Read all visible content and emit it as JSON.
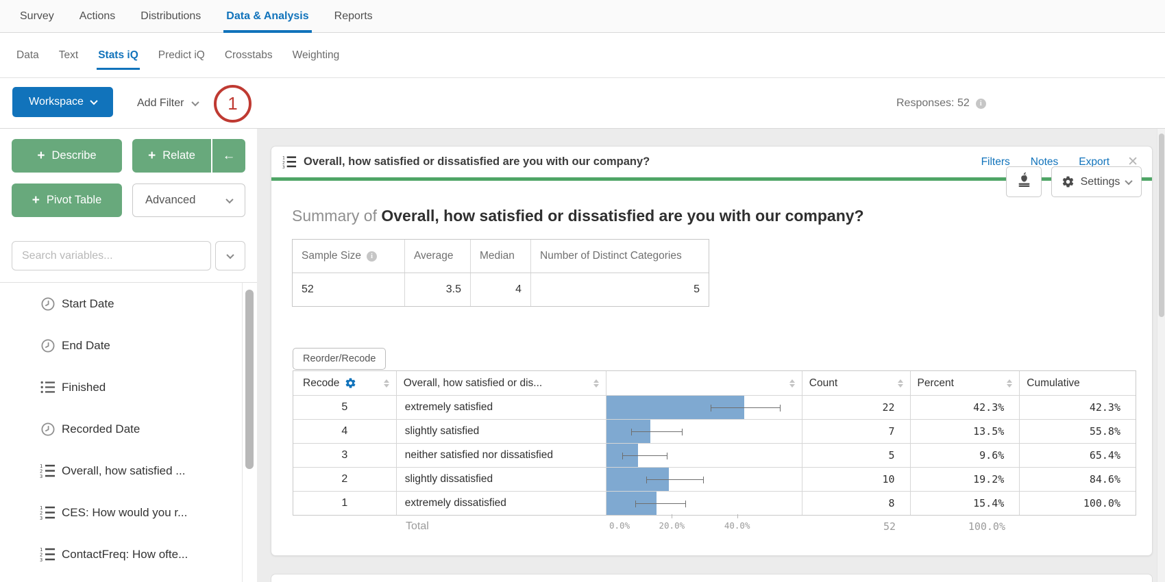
{
  "colors": {
    "accent_blue": "#1173bb",
    "button_green": "#68a97c",
    "bar_blue": "#7fa9d1",
    "annotation_red": "#bf3a32",
    "header_green": "#4fa566"
  },
  "nav": {
    "tabs": [
      "Survey",
      "Actions",
      "Distributions",
      "Data & Analysis",
      "Reports"
    ],
    "active_tab": "Data & Analysis"
  },
  "subnav": {
    "tabs": [
      "Data",
      "Text",
      "Stats iQ",
      "Predict iQ",
      "Crosstabs",
      "Weighting"
    ],
    "active_tab": "Stats iQ"
  },
  "toolbar": {
    "workspace_label": "Workspace",
    "add_filter_label": "Add Filter",
    "annotation_badge": "1",
    "responses_label": "Responses: 52",
    "info_glyph": "i",
    "settings_label": "Settings"
  },
  "sidebar": {
    "plus_glyph": "+",
    "describe_label": "Describe",
    "relate_label": "Relate",
    "collapse_arrow": "←",
    "pivot_label": "Pivot Table",
    "advanced_label": "Advanced",
    "search_placeholder": "Search variables...",
    "variables": [
      {
        "icon": "clock-icon",
        "label": "Start Date"
      },
      {
        "icon": "clock-icon",
        "label": "End Date"
      },
      {
        "icon": "list-icon",
        "label": "Finished"
      },
      {
        "icon": "clock-icon",
        "label": "Recorded Date"
      },
      {
        "icon": "ordered-list-icon",
        "label": "Overall, how satisfied ..."
      },
      {
        "icon": "ordered-list-icon",
        "label": "CES: How would you r..."
      },
      {
        "icon": "ordered-list-icon",
        "label": "ContactFreq: How ofte..."
      }
    ]
  },
  "card": {
    "title": "Overall, how satisfied or dissatisfied are you with our company?",
    "links": {
      "filters": "Filters",
      "notes": "Notes",
      "export": "Export",
      "close_glyph": "✕"
    },
    "summary_prefix": "Summary of ",
    "summary_question": "Overall, how satisfied or dissatisfied are you with our company?",
    "stats": {
      "headers": [
        "Sample Size",
        "Average",
        "Median",
        "Number of Distinct Categories"
      ],
      "values": [
        "52",
        "3.5",
        "4",
        "5"
      ]
    },
    "reorder_label": "Reorder/Recode",
    "table": {
      "headers": {
        "recode": "Recode",
        "variable": "Overall, how satisfied or dis...",
        "count": "Count",
        "percent": "Percent",
        "cumulative": "Cumulative"
      },
      "rows": [
        {
          "recode": "5",
          "label": "extremely satisfied",
          "count": "22",
          "percent": "42.3%",
          "cumulative": "42.3%",
          "bar_pct": 42.3,
          "ci_low": 32.0,
          "ci_high": 53.5
        },
        {
          "recode": "4",
          "label": "slightly satisfied",
          "count": "7",
          "percent": "13.5%",
          "cumulative": "55.8%",
          "bar_pct": 13.5,
          "ci_low": 7.5,
          "ci_high": 23.3
        },
        {
          "recode": "3",
          "label": "neither satisfied nor dissatisfied",
          "count": "5",
          "percent": "9.6%",
          "cumulative": "65.4%",
          "bar_pct": 9.6,
          "ci_low": 4.8,
          "ci_high": 18.7
        },
        {
          "recode": "2",
          "label": "slightly dissatisfied",
          "count": "10",
          "percent": "19.2%",
          "cumulative": "84.6%",
          "bar_pct": 19.2,
          "ci_low": 12.2,
          "ci_high": 30.0
        },
        {
          "recode": "1",
          "label": "extremely dissatisfied",
          "count": "8",
          "percent": "15.4%",
          "cumulative": "100.0%",
          "bar_pct": 15.4,
          "ci_low": 8.8,
          "ci_high": 24.5
        }
      ],
      "total": {
        "label": "Total",
        "count": "52",
        "percent": "100.0%"
      },
      "axis": {
        "ticks": [
          "0.0%",
          "20.0%",
          "40.0%"
        ],
        "tick_values": [
          0,
          20,
          40
        ],
        "max": 60
      }
    }
  },
  "chart_data": {
    "type": "bar",
    "orientation": "horizontal",
    "categories": [
      "extremely satisfied",
      "slightly satisfied",
      "neither satisfied nor dissatisfied",
      "slightly dissatisfied",
      "extremely dissatisfied"
    ],
    "values": [
      42.3,
      13.5,
      9.6,
      19.2,
      15.4
    ],
    "counts": [
      22,
      7,
      5,
      10,
      8
    ],
    "error_bars": [
      [
        32.0,
        53.5
      ],
      [
        7.5,
        23.3
      ],
      [
        4.8,
        18.7
      ],
      [
        12.2,
        30.0
      ],
      [
        8.8,
        24.5
      ]
    ],
    "title": "Overall, how satisfied or dissatisfied are you with our company?",
    "xlabel": "Percent",
    "ylabel": "",
    "xlim": [
      0,
      60
    ],
    "x_ticks": [
      0,
      20,
      40
    ],
    "sample_size": 52,
    "average": 3.5,
    "median": 4,
    "distinct_categories": 5
  }
}
